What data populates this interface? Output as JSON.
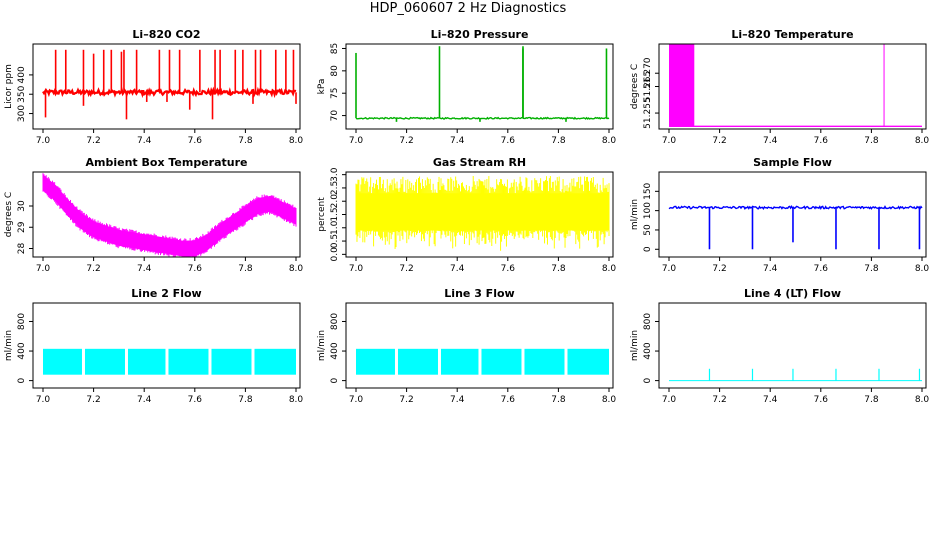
{
  "figure": {
    "title": "HDP_060607  2 Hz Diagnostics"
  },
  "chart_data": [
    {
      "id": "co2",
      "type": "line",
      "title": "Li–820 CO2",
      "ylabel": "Licor ppm",
      "color": "#ff0000",
      "xlim": [
        7.0,
        8.0
      ],
      "ylim": [
        260,
        480
      ],
      "xticks": [
        "7.0",
        "7.2",
        "7.4",
        "7.6",
        "7.8",
        "8.0"
      ],
      "yticks": [
        300,
        350,
        400
      ],
      "series": [
        {
          "name": "CO2",
          "baseline": 355,
          "noise": 6,
          "spikes": [
            [
              7.05,
              465
            ],
            [
              7.09,
              465
            ],
            [
              7.16,
              465
            ],
            [
              7.2,
              455
            ],
            [
              7.24,
              465
            ],
            [
              7.27,
              465
            ],
            [
              7.31,
              460
            ],
            [
              7.32,
              465
            ],
            [
              7.37,
              465
            ],
            [
              7.46,
              465
            ],
            [
              7.5,
              465
            ],
            [
              7.54,
              465
            ],
            [
              7.62,
              465
            ],
            [
              7.68,
              465
            ],
            [
              7.7,
              465
            ],
            [
              7.76,
              465
            ],
            [
              7.79,
              465
            ],
            [
              7.84,
              465
            ],
            [
              7.86,
              465
            ],
            [
              7.92,
              465
            ],
            [
              7.96,
              465
            ],
            [
              7.99,
              465
            ]
          ],
          "dips": [
            [
              7.01,
              290
            ],
            [
              7.16,
              320
            ],
            [
              7.33,
              285
            ],
            [
              7.41,
              330
            ],
            [
              7.49,
              330
            ],
            [
              7.58,
              310
            ],
            [
              7.67,
              285
            ],
            [
              7.83,
              325
            ],
            [
              8.0,
              325
            ]
          ]
        }
      ]
    },
    {
      "id": "pressure",
      "type": "line",
      "title": "Li–820 Pressure",
      "ylabel": "kPa",
      "color": "#00b000",
      "xlim": [
        7.0,
        8.0
      ],
      "ylim": [
        67,
        86
      ],
      "xticks": [
        "7.0",
        "7.2",
        "7.4",
        "7.6",
        "7.8",
        "8.0"
      ],
      "yticks": [
        70,
        75,
        80,
        85
      ],
      "series": [
        {
          "name": "Pressure",
          "baseline": 69.4,
          "noise": 0.15,
          "spikes": [
            [
              7.0,
              84
            ],
            [
              7.33,
              85.5
            ],
            [
              7.66,
              85.5
            ],
            [
              7.66,
              85
            ],
            [
              7.99,
              85
            ]
          ],
          "dips": [
            [
              7.16,
              68.6
            ],
            [
              7.49,
              68.6
            ],
            [
              7.83,
              68.6
            ]
          ]
        }
      ]
    },
    {
      "id": "li820temp",
      "type": "line",
      "title": "Li–820 Temperature",
      "ylabel": "degrees C",
      "color": "#ff00ff",
      "xlim": [
        7.0,
        8.0
      ],
      "ylim": [
        51.249,
        51.281
      ],
      "xticks": [
        "7.0",
        "7.2",
        "7.4",
        "7.6",
        "7.8",
        "8.0"
      ],
      "yticks": [
        51.255,
        51.265,
        51.27
      ],
      "ytick_labels": [
        "51.255",
        "51.265",
        "51.270"
      ],
      "series": [
        {
          "name": "Temperature",
          "baseline": 51.25,
          "block": [
            7.0,
            7.1,
            51.281
          ],
          "spike": [
            7.85,
            51.281
          ]
        }
      ]
    },
    {
      "id": "boxtemp",
      "type": "line",
      "title": "Ambient Box Temperature",
      "ylabel": "degrees C",
      "color": "#ff00ff",
      "xlim": [
        7.0,
        8.0
      ],
      "ylim": [
        27.6,
        31.6
      ],
      "xticks": [
        "7.0",
        "7.2",
        "7.4",
        "7.6",
        "7.8",
        "8.0"
      ],
      "yticks": [
        28,
        29,
        30
      ],
      "series": [
        {
          "name": "Box Temp",
          "x": [
            7.0,
            7.05,
            7.1,
            7.15,
            7.2,
            7.25,
            7.3,
            7.35,
            7.4,
            7.45,
            7.5,
            7.55,
            7.6,
            7.65,
            7.7,
            7.75,
            7.8,
            7.85,
            7.9,
            7.95,
            8.0
          ],
          "y": [
            31.1,
            30.6,
            29.9,
            29.3,
            28.9,
            28.7,
            28.5,
            28.4,
            28.3,
            28.2,
            28.1,
            28.0,
            28.0,
            28.3,
            28.8,
            29.2,
            29.6,
            30.0,
            30.1,
            29.8,
            29.5
          ],
          "band": 0.35
        }
      ]
    },
    {
      "id": "rh",
      "type": "line",
      "title": "Gas Stream RH",
      "ylabel": "percent",
      "color": "#ffff00",
      "xlim": [
        7.0,
        8.0
      ],
      "ylim": [
        -0.1,
        3.1
      ],
      "xticks": [
        "7.0",
        "7.2",
        "7.4",
        "7.6",
        "7.8",
        "8.0"
      ],
      "yticks": [
        0.0,
        0.5,
        1.0,
        1.5,
        2.0,
        2.5,
        3.0
      ],
      "ytick_labels": [
        "0.0",
        "0.5",
        "1.0",
        "1.5",
        "2.0",
        "2.5",
        "3.0"
      ],
      "series": [
        {
          "name": "RH",
          "low": 0.9,
          "high": 2.3,
          "min": 0.05,
          "max": 2.95
        }
      ]
    },
    {
      "id": "sampleflow",
      "type": "line",
      "title": "Sample Flow",
      "ylabel": "ml/min",
      "color": "#0000ff",
      "xlim": [
        7.0,
        8.0
      ],
      "ylim": [
        -20,
        200
      ],
      "xticks": [
        "7.0",
        "7.2",
        "7.4",
        "7.6",
        "7.8",
        "8.0"
      ],
      "yticks": [
        0,
        50,
        100,
        150
      ],
      "series": [
        {
          "name": "Sample Flow",
          "baseline": 108,
          "noise": 3,
          "dips": [
            [
              7.16,
              0
            ],
            [
              7.33,
              0
            ],
            [
              7.49,
              18
            ],
            [
              7.66,
              0
            ],
            [
              7.83,
              0
            ],
            [
              7.99,
              0
            ]
          ]
        }
      ]
    },
    {
      "id": "line2",
      "type": "line",
      "title": "Line 2 Flow",
      "ylabel": "ml/min",
      "color": "#00ffff",
      "xlim": [
        7.0,
        8.0
      ],
      "ylim": [
        -100,
        1050
      ],
      "xticks": [
        "7.0",
        "7.2",
        "7.4",
        "7.6",
        "7.8",
        "8.0"
      ],
      "yticks": [
        0,
        400,
        800
      ],
      "series": [
        {
          "name": "Line 2",
          "low": 80,
          "high": 430,
          "gaps": [
            7.16,
            7.33,
            7.49,
            7.66,
            7.83
          ]
        }
      ]
    },
    {
      "id": "line3",
      "type": "line",
      "title": "Line 3 Flow",
      "ylabel": "ml/min",
      "color": "#00ffff",
      "xlim": [
        7.0,
        8.0
      ],
      "ylim": [
        -100,
        1050
      ],
      "xticks": [
        "7.0",
        "7.2",
        "7.4",
        "7.6",
        "7.8",
        "8.0"
      ],
      "yticks": [
        0,
        400,
        800
      ],
      "series": [
        {
          "name": "Line 3",
          "low": 80,
          "high": 430,
          "gaps": [
            7.16,
            7.33,
            7.49,
            7.66,
            7.83
          ]
        }
      ]
    },
    {
      "id": "line4",
      "type": "line",
      "title": "Line 4 (LT) Flow",
      "ylabel": "ml/min",
      "color": "#00ffff",
      "xlim": [
        7.0,
        8.0
      ],
      "ylim": [
        -100,
        1050
      ],
      "xticks": [
        "7.0",
        "7.2",
        "7.4",
        "7.6",
        "7.8",
        "8.0"
      ],
      "yticks": [
        0,
        400,
        800
      ],
      "series": [
        {
          "name": "Line 4",
          "baseline": 0,
          "spikes": [
            [
              7.16,
              160
            ],
            [
              7.33,
              160
            ],
            [
              7.49,
              160
            ],
            [
              7.66,
              160
            ],
            [
              7.83,
              160
            ],
            [
              7.99,
              160
            ]
          ]
        }
      ]
    }
  ]
}
